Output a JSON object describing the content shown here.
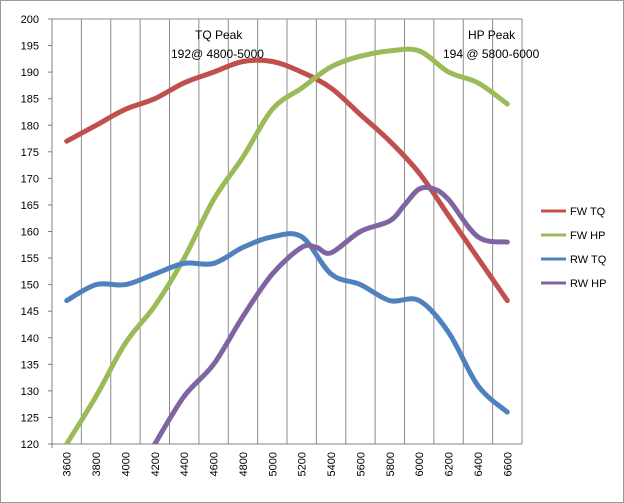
{
  "chart_data": {
    "type": "line",
    "categories": [
      "3600",
      "3800",
      "4000",
      "4200",
      "4400",
      "4600",
      "4800",
      "5000",
      "5200",
      "5400",
      "5600",
      "5800",
      "6000",
      "6200",
      "6400",
      "6600"
    ],
    "ylim": [
      120,
      200
    ],
    "yticks": [
      120,
      125,
      130,
      135,
      140,
      145,
      150,
      155,
      160,
      165,
      170,
      175,
      180,
      185,
      190,
      195,
      200
    ],
    "grid": "vertical",
    "legend_position": "right",
    "series": [
      {
        "name": "FW TQ",
        "color": "#c0504d",
        "x": [
          3600,
          3800,
          4000,
          4200,
          4400,
          4600,
          4800,
          5000,
          5200,
          5400,
          5600,
          5800,
          6000,
          6200,
          6400,
          6600
        ],
        "values": [
          177,
          180,
          183,
          185,
          188,
          190,
          192,
          192,
          190,
          187,
          182,
          177,
          171,
          163,
          155,
          147
        ]
      },
      {
        "name": "FW HP",
        "color": "#9bbb59",
        "x": [
          3600,
          3800,
          4000,
          4200,
          4400,
          4600,
          4800,
          5000,
          5200,
          5400,
          5600,
          5800,
          6000,
          6200,
          6400,
          6600
        ],
        "values": [
          120,
          129,
          139,
          146,
          155,
          166,
          174,
          183,
          187,
          191,
          193,
          194,
          194,
          190,
          188,
          184
        ]
      },
      {
        "name": "RW TQ",
        "color": "#4f81bd",
        "x": [
          3600,
          3800,
          4000,
          4200,
          4400,
          4600,
          4800,
          5000,
          5200,
          5400,
          5600,
          5800,
          6000,
          6200,
          6400,
          6600
        ],
        "values": [
          147,
          150,
          150,
          152,
          154,
          154,
          157,
          159,
          159,
          152,
          150,
          147,
          147,
          141,
          131,
          126
        ]
      },
      {
        "name": "RW HP",
        "color": "#8064a2",
        "x": [
          4200,
          4400,
          4600,
          4800,
          5000,
          5200,
          5300,
          5400,
          5600,
          5800,
          5900,
          6000,
          6100,
          6200,
          6400,
          6600
        ],
        "values": [
          120,
          129,
          135,
          144,
          152,
          157,
          157,
          156,
          160,
          162,
          165,
          168,
          168,
          166,
          159,
          158
        ]
      }
    ],
    "annotations": [
      {
        "id": "tq",
        "line1": "TQ Peak",
        "line2": "192@ 4800-5000"
      },
      {
        "id": "hp",
        "line1": "HP Peak",
        "line2": "194 @ 5800-6000"
      }
    ]
  }
}
